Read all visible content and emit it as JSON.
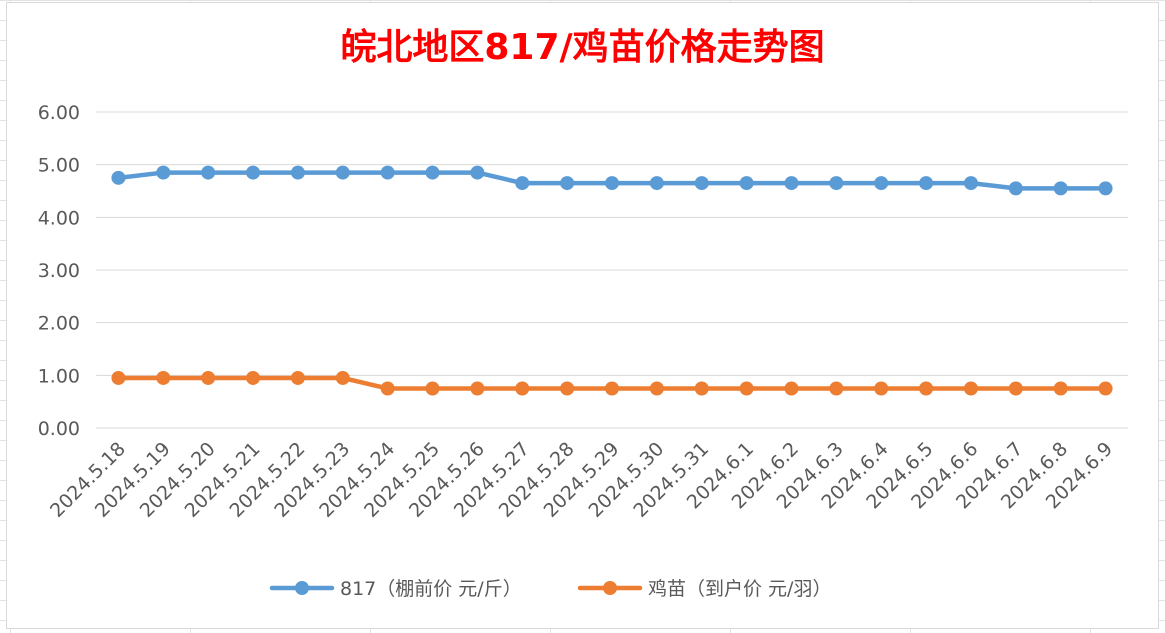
{
  "chart_data": {
    "type": "line",
    "title": "皖北地区817/鸡苗价格走势图",
    "categories": [
      "2024.5.18",
      "2024.5.19",
      "2024.5.20",
      "2024.5.21",
      "2024.5.22",
      "2024.5.23",
      "2024.5.24",
      "2024.5.25",
      "2024.5.26",
      "2024.5.27",
      "2024.5.28",
      "2024.5.29",
      "2024.5.30",
      "2024.5.31",
      "2024.6.1",
      "2024.6.2",
      "2024.6.3",
      "2024.6.4",
      "2024.6.5",
      "2024.6.6",
      "2024.6.7",
      "2024.6.8",
      "2024.6.9"
    ],
    "y_ticks": [
      "0.00",
      "1.00",
      "2.00",
      "3.00",
      "4.00",
      "5.00",
      "6.00"
    ],
    "ylim": [
      0,
      6
    ],
    "grid": true,
    "legend_position": "bottom",
    "series": [
      {
        "name": "817（棚前价 元/斤）",
        "color": "#5b9bd5",
        "values": [
          4.75,
          4.85,
          4.85,
          4.85,
          4.85,
          4.85,
          4.85,
          4.85,
          4.85,
          4.65,
          4.65,
          4.65,
          4.65,
          4.65,
          4.65,
          4.65,
          4.65,
          4.65,
          4.65,
          4.65,
          4.55,
          4.55,
          4.55
        ]
      },
      {
        "name": "鸡苗（到户价 元/羽）",
        "color": "#ed7d31",
        "values": [
          0.95,
          0.95,
          0.95,
          0.95,
          0.95,
          0.95,
          0.75,
          0.75,
          0.75,
          0.75,
          0.75,
          0.75,
          0.75,
          0.75,
          0.75,
          0.75,
          0.75,
          0.75,
          0.75,
          0.75,
          0.75,
          0.75,
          0.75
        ]
      }
    ]
  }
}
